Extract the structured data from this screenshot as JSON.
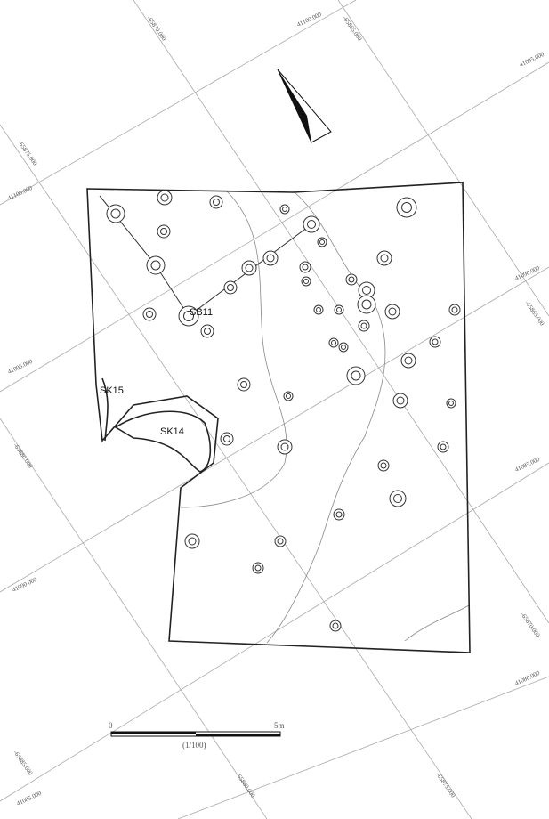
{
  "features": [
    "SB11",
    "SK14",
    "SK15"
  ],
  "grid_labels": [
    "-65870.000",
    "41100.000",
    "-65865.000",
    "41095.000",
    "-65875.000",
    "41100.000",
    "41090.000",
    "-65865.000",
    "41095.000",
    "-65880.000",
    "41085.000",
    "41090.000",
    "-65870.000",
    "41080.000",
    "-65885.000",
    "41085.000",
    "-65880.000",
    "-65875.000"
  ],
  "scale": {
    "zero": "0",
    "end": "5m",
    "ratio": "(1/100)"
  }
}
